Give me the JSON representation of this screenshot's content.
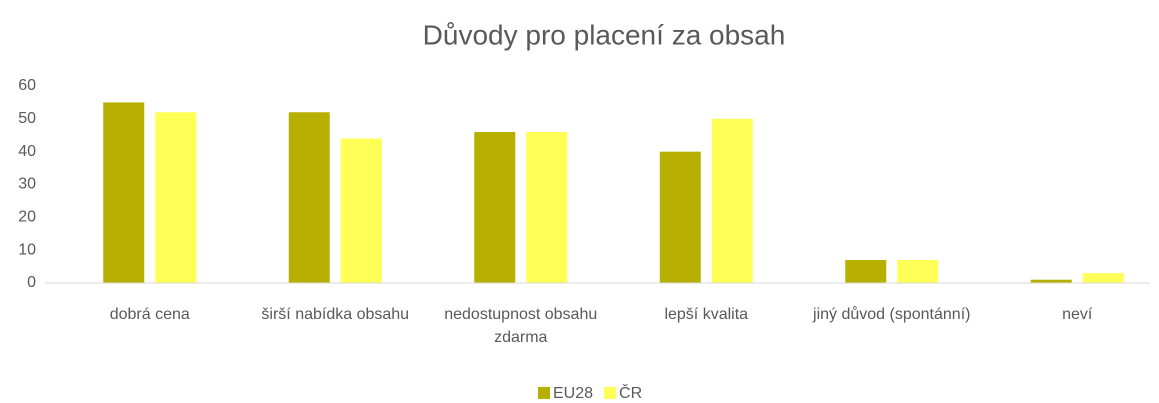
{
  "chart_data": {
    "type": "bar",
    "title": "Důvody pro placení za obsah",
    "categories": [
      "dobrá cena",
      "širší nabídka obsahu",
      "nedostupnost obsahu zdarma",
      "lepší kvalita",
      "jiný důvod (spontánní)",
      "neví"
    ],
    "series": [
      {
        "name": "EU28",
        "color": "#b7b000",
        "values": [
          55,
          52,
          46,
          40,
          7,
          1
        ]
      },
      {
        "name": "ČR",
        "color": "#ffff55",
        "values": [
          52,
          44,
          46,
          50,
          7,
          3
        ]
      }
    ],
    "ylim": [
      0,
      60
    ],
    "yticks": [
      0,
      10,
      20,
      30,
      40,
      50,
      60
    ],
    "grid": false,
    "legend": "bottom"
  }
}
